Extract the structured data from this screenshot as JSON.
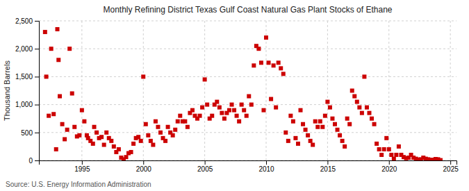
{
  "chart_data": {
    "type": "scatter",
    "title": "Monthly Refining District Texas Gulf Coast Natural Gas Plant Stocks of Ethane",
    "ylabel": "Thousand Barrels",
    "annotations": [
      "Source: U.S. Energy Information Administration"
    ],
    "color": "#cc0000",
    "marker": "square",
    "grid": true,
    "xlim": [
      1991.5,
      2025.5
    ],
    "ylim": [
      0,
      2500
    ],
    "xticks": [
      1995,
      2000,
      2005,
      2010,
      2015,
      2020,
      2025
    ],
    "yticks": [
      0,
      500,
      {
        "value": 1000,
        "label": "1,000"
      },
      {
        "value": 1500,
        "label": "1,500"
      },
      {
        "value": 2000,
        "label": "2,000"
      },
      {
        "value": 2500,
        "label": "2,500"
      }
    ],
    "x": [
      1992.0,
      1992.1,
      1992.3,
      1992.5,
      1992.7,
      1992.9,
      1993.0,
      1993.1,
      1993.2,
      1993.4,
      1993.6,
      1993.8,
      1994.0,
      1994.2,
      1994.4,
      1994.6,
      1994.8,
      1995.0,
      1995.2,
      1995.4,
      1995.5,
      1995.7,
      1995.9,
      1996.0,
      1996.2,
      1996.4,
      1996.6,
      1996.8,
      1997.0,
      1997.2,
      1997.4,
      1997.6,
      1997.8,
      1998.0,
      1998.2,
      1998.4,
      1998.6,
      1998.8,
      1999.0,
      1999.2,
      1999.4,
      1999.6,
      1999.8,
      2000.0,
      2000.2,
      2000.4,
      2000.6,
      2000.8,
      2001.0,
      2001.2,
      2001.4,
      2001.6,
      2001.8,
      2002.0,
      2002.2,
      2002.4,
      2002.6,
      2002.8,
      2003.0,
      2003.2,
      2003.4,
      2003.6,
      2003.8,
      2004.0,
      2004.2,
      2004.4,
      2004.6,
      2004.8,
      2005.0,
      2005.2,
      2005.4,
      2005.6,
      2005.8,
      2006.0,
      2006.2,
      2006.4,
      2006.6,
      2006.8,
      2007.0,
      2007.2,
      2007.4,
      2007.6,
      2007.8,
      2008.0,
      2008.2,
      2008.4,
      2008.6,
      2008.8,
      2009.0,
      2009.2,
      2009.4,
      2009.6,
      2009.8,
      2010.0,
      2010.2,
      2010.4,
      2010.6,
      2010.8,
      2011.0,
      2011.2,
      2011.4,
      2011.6,
      2011.8,
      2012.0,
      2012.2,
      2012.4,
      2012.6,
      2012.8,
      2013.0,
      2013.2,
      2013.4,
      2013.6,
      2013.8,
      2014.0,
      2014.2,
      2014.4,
      2014.6,
      2014.8,
      2015.0,
      2015.2,
      2015.4,
      2015.6,
      2015.8,
      2016.0,
      2016.2,
      2016.4,
      2016.6,
      2016.8,
      2017.0,
      2017.2,
      2017.4,
      2017.6,
      2017.8,
      2018.0,
      2018.2,
      2018.4,
      2018.6,
      2018.8,
      2019.0,
      2019.2,
      2019.4,
      2019.6,
      2019.8,
      2020.0,
      2020.2,
      2020.4,
      2020.6,
      2020.8,
      2021.0,
      2021.2,
      2021.4,
      2021.6,
      2021.8,
      2022.0,
      2022.2,
      2022.4,
      2022.6,
      2022.8,
      2023.0,
      2023.2,
      2023.4,
      2023.6,
      2023.8,
      2024.0,
      2024.2
    ],
    "values": [
      2300,
      1500,
      800,
      2000,
      830,
      200,
      2350,
      1800,
      1150,
      650,
      380,
      550,
      2000,
      1200,
      600,
      430,
      450,
      900,
      700,
      450,
      400,
      350,
      300,
      600,
      500,
      400,
      420,
      280,
      500,
      400,
      350,
      250,
      150,
      200,
      50,
      20,
      60,
      130,
      150,
      300,
      400,
      420,
      350,
      1500,
      650,
      450,
      350,
      280,
      700,
      600,
      500,
      400,
      350,
      600,
      500,
      450,
      550,
      700,
      800,
      700,
      700,
      600,
      850,
      900,
      800,
      750,
      800,
      950,
      1450,
      1000,
      750,
      800,
      1000,
      1050,
      950,
      850,
      750,
      850,
      900,
      1000,
      900,
      800,
      700,
      1000,
      900,
      800,
      1150,
      1000,
      1700,
      2050,
      2000,
      1750,
      900,
      2200,
      1750,
      1100,
      1700,
      950,
      1750,
      1650,
      1550,
      500,
      350,
      800,
      700,
      400,
      300,
      900,
      650,
      550,
      450,
      350,
      280,
      700,
      600,
      700,
      600,
      800,
      1050,
      950,
      750,
      650,
      550,
      450,
      350,
      250,
      750,
      650,
      1250,
      1150,
      1050,
      950,
      850,
      1500,
      950,
      850,
      750,
      650,
      300,
      200,
      100,
      200,
      400,
      200,
      100,
      30,
      100,
      250,
      100,
      60,
      40,
      50,
      100,
      50,
      30,
      15,
      20,
      50,
      30,
      20,
      10,
      12,
      25,
      20,
      5
    ]
  }
}
